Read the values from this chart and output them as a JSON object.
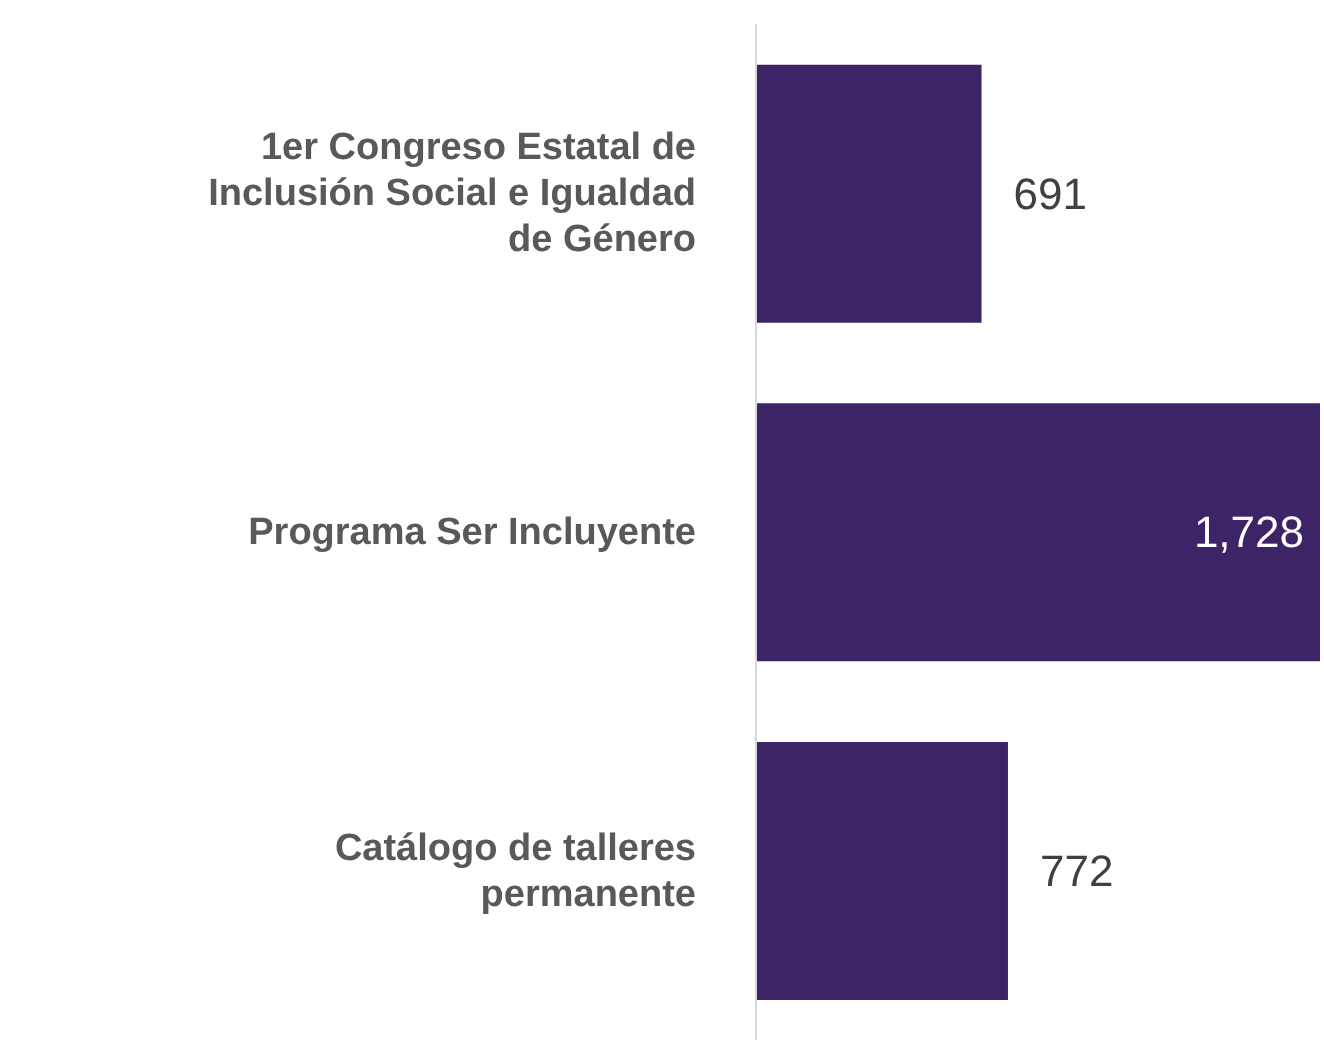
{
  "chart_data": {
    "type": "bar",
    "orientation": "horizontal",
    "categories": [
      "1er Congreso Estatal de Inclusión Social e Igualdad de Género",
      "Programa Ser Incluyente",
      "Catálogo de talleres permanente"
    ],
    "values": [
      691,
      1728,
      772
    ],
    "value_labels": [
      "691",
      "1,728",
      "772"
    ],
    "color": "#3d2466",
    "xlim": [
      0,
      1728
    ],
    "tick_labels": "y"
  }
}
